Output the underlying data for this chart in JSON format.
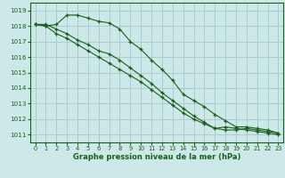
{
  "title": "Graphe pression niveau de la mer (hPa)",
  "xlim": [
    -0.5,
    23.5
  ],
  "ylim": [
    1010.5,
    1019.5
  ],
  "yticks": [
    1011,
    1012,
    1013,
    1014,
    1015,
    1016,
    1017,
    1018,
    1019
  ],
  "xticks": [
    0,
    1,
    2,
    3,
    4,
    5,
    6,
    7,
    8,
    9,
    10,
    11,
    12,
    13,
    14,
    15,
    16,
    17,
    18,
    19,
    20,
    21,
    22,
    23
  ],
  "bg_color": "#cce8e8",
  "grid_color": "#aacccc",
  "line_color": "#1a5e1a",
  "series": [
    [
      1018.1,
      1018.0,
      1018.1,
      1018.7,
      1018.7,
      1018.5,
      1018.3,
      1018.2,
      1017.8,
      1017.0,
      1016.5,
      1015.8,
      1015.2,
      1014.5,
      1013.6,
      1013.2,
      1012.8,
      1012.3,
      1011.9,
      1011.5,
      1011.5,
      1011.4,
      1011.3,
      1011.1
    ],
    [
      1018.1,
      1018.1,
      1017.8,
      1017.5,
      1017.1,
      1016.8,
      1016.4,
      1016.2,
      1015.8,
      1015.3,
      1014.8,
      1014.3,
      1013.7,
      1013.2,
      1012.7,
      1012.2,
      1011.8,
      1011.4,
      1011.3,
      1011.3,
      1011.4,
      1011.3,
      1011.2,
      1011.1
    ],
    [
      1018.1,
      1018.0,
      1017.5,
      1017.2,
      1016.8,
      1016.4,
      1016.0,
      1015.6,
      1015.2,
      1014.8,
      1014.4,
      1013.9,
      1013.4,
      1012.9,
      1012.4,
      1012.0,
      1011.7,
      1011.4,
      1011.5,
      1011.4,
      1011.3,
      1011.2,
      1011.1,
      1011.0
    ]
  ]
}
